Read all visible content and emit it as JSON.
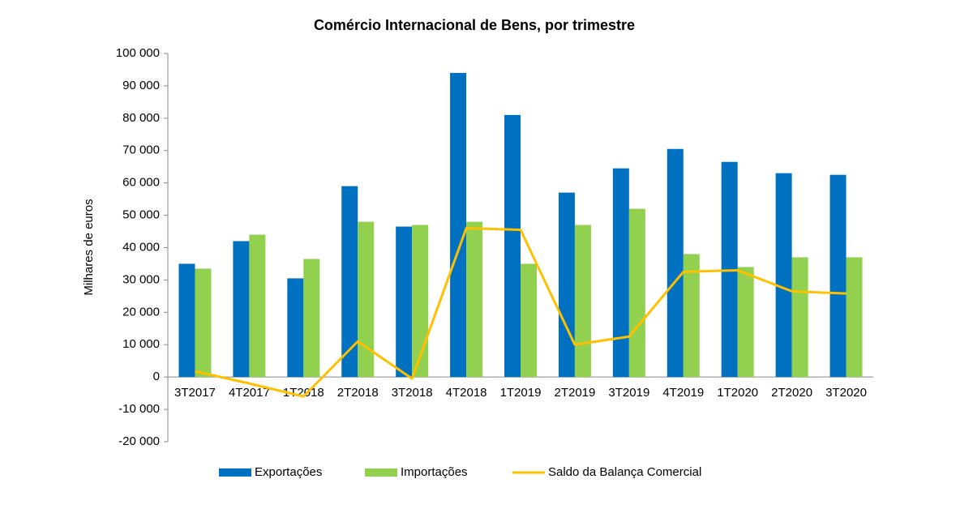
{
  "chart_data": {
    "type": "bar_line",
    "title": "Comércio Internacional de Bens, por trimestre",
    "y_label": "Milhares de euros",
    "categories": [
      "3T2017",
      "4T2017",
      "1T2018",
      "2T2018",
      "3T2018",
      "4T2018",
      "1T2019",
      "2T2019",
      "3T2019",
      "4T2019",
      "1T2020",
      "2T2020",
      "3T2020"
    ],
    "series": [
      {
        "name": "Exportações",
        "type": "bar",
        "color": "#0070c0",
        "values": [
          35000,
          42000,
          30500,
          59000,
          46500,
          94000,
          81000,
          57000,
          64500,
          70500,
          66500,
          63000,
          62500
        ]
      },
      {
        "name": "Importações",
        "type": "bar",
        "color": "#92d050",
        "values": [
          33500,
          44000,
          36500,
          48000,
          47000,
          48000,
          35000,
          47000,
          52000,
          38000,
          34000,
          37000,
          37000
        ]
      },
      {
        "name": "Saldo da Balança Comercial",
        "type": "line",
        "color": "#ffc000",
        "values": [
          1800,
          -2000,
          -6000,
          11000,
          -500,
          46000,
          45500,
          10000,
          12500,
          32500,
          33000,
          26500,
          25800
        ]
      }
    ],
    "ylim": [
      -20000,
      100000
    ],
    "yticks": [
      {
        "value": -20000,
        "label": "-20 000"
      },
      {
        "value": -10000,
        "label": "-10 000"
      },
      0,
      {
        "value": 10000,
        "label": "10 000"
      },
      {
        "value": 20000,
        "label": "20 000"
      },
      {
        "value": 30000,
        "label": "30 000"
      },
      {
        "value": 40000,
        "label": "40 000"
      },
      {
        "value": 50000,
        "label": "50 000"
      },
      {
        "value": 60000,
        "label": "60 000"
      },
      {
        "value": 70000,
        "label": "70 000"
      },
      {
        "value": 80000,
        "label": "80 000"
      },
      {
        "value": 90000,
        "label": "90 000"
      },
      {
        "value": 100000,
        "label": "100 000"
      }
    ],
    "grid": false,
    "legend": "bottom"
  }
}
